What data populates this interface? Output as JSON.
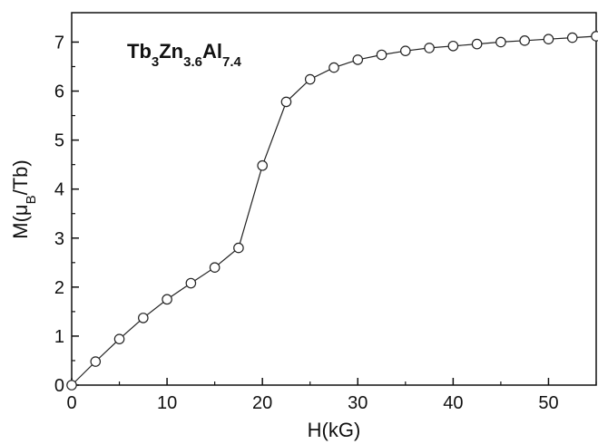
{
  "chart_data": {
    "type": "scatter",
    "title": {
      "parts": [
        {
          "text": "Tb",
          "sub": false
        },
        {
          "text": "3",
          "sub": true
        },
        {
          "text": "Zn",
          "sub": false
        },
        {
          "text": "3.6",
          "sub": true
        },
        {
          "text": "Al",
          "sub": false
        },
        {
          "text": "7.4",
          "sub": true
        }
      ]
    },
    "xlabel": "H(kG)",
    "ylabel": {
      "parts": [
        {
          "text": "M(μ",
          "sub": false
        },
        {
          "text": "B",
          "sub": true
        },
        {
          "text": "/Tb)",
          "sub": false
        }
      ]
    },
    "xlim": [
      0,
      55
    ],
    "ylim": [
      0,
      7.6
    ],
    "x_ticks": [
      0,
      10,
      20,
      30,
      40,
      50
    ],
    "y_ticks": [
      0,
      1,
      2,
      3,
      4,
      5,
      6,
      7
    ],
    "grid": false,
    "marker": "open-circle",
    "line": true,
    "series": [
      {
        "x": [
          0,
          2.5,
          5,
          7.5,
          10,
          12.5,
          15,
          17.5,
          20,
          22.5,
          25,
          27.5,
          30,
          32.5,
          35,
          37.5,
          40,
          42.5,
          45,
          47.5,
          50,
          52.5,
          55
        ],
        "y": [
          0.0,
          0.48,
          0.94,
          1.37,
          1.75,
          2.08,
          2.4,
          2.8,
          4.48,
          5.78,
          6.24,
          6.48,
          6.64,
          6.74,
          6.82,
          6.88,
          6.92,
          6.96,
          7.0,
          7.03,
          7.06,
          7.09,
          7.12
        ]
      }
    ]
  }
}
